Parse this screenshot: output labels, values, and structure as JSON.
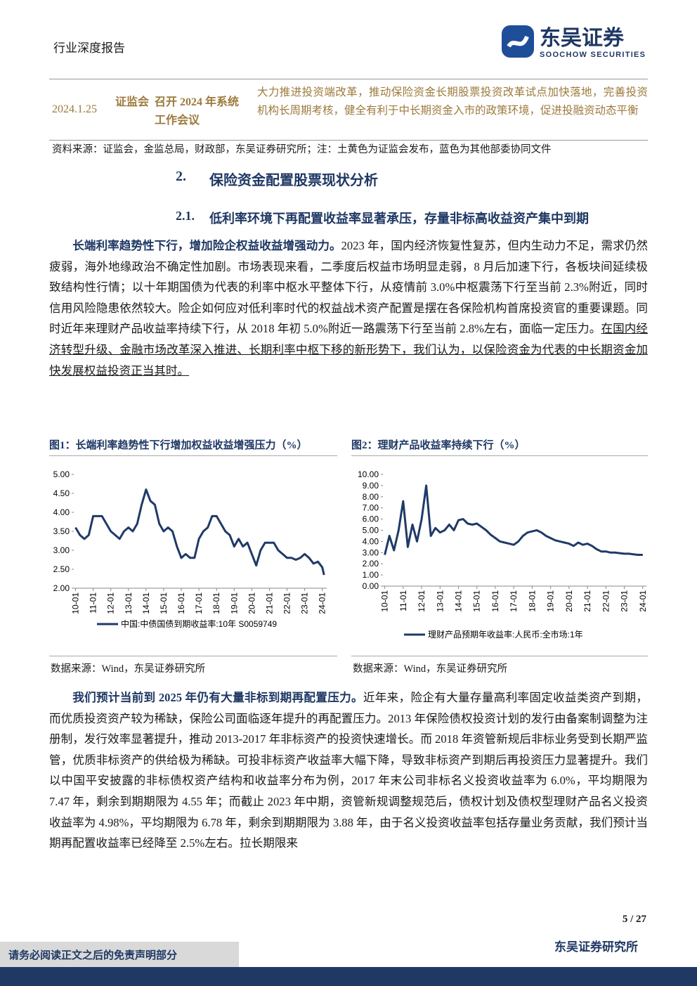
{
  "header": {
    "report_type": "行业深度报告",
    "logo_cn": "东吴证券",
    "logo_en": "SOOCHOW SECURITIES"
  },
  "table": {
    "row": [
      "2024.1.25",
      "证监会",
      "召开 2024 年系统工作会议",
      "大力推进投资端改革，推动保险资金长期股票投资改革试点加快落地，完善投资机构长周期考核，健全有利于中长期资金入市的政策环境，促进投融资动态平衡"
    ],
    "source": "资料来源：证监会，金监总局，财政部，东吴证券研究所；注：土黄色为证监会发布，蓝色为其他部委协同文件"
  },
  "section": {
    "number": "2.",
    "title": "保险资金配置股票现状分析"
  },
  "subsection": {
    "number": "2.1.",
    "title": "低利率环境下再配置收益率显著承压，存量非标高收益资产集中到期"
  },
  "paragraphs": [
    {
      "lead": "长端利率趋势性下行，增加险企权益收益增强动力。",
      "text": "2023 年，国内经济恢复性复苏，但内生动力不足，需求仍然疲弱，海外地缘政治不确定性加剧。市场表现来看，二季度后权益市场明显走弱，8 月后加速下行，各板块间延续极致结构性行情；以十年期国债为代表的利率中枢水平整体下行，从疫情前 3.0%中枢震荡下行至当前 2.3%附近，同时信用风险隐患依然较大。险企如何应对低利率时代的权益战术资产配置是摆在各保险机构首席投资官的重要课题。同时近年来理财产品收益率持续下行，从 2018 年初 5.0%附近一路震荡下行至当前 2.8%左右，面临一定压力。",
      "underlined": "在国内经济转型升级、金融市场改革深入推进、长期利率中枢下移的新形势下，我们认为，以保险资金为代表的中长期资金加快发展权益投资正当其时。"
    },
    {
      "lead": "我们预计当前到 2025 年仍有大量非标到期再配置压力。",
      "text": "近年来，险企有大量存量高利率固定收益类资产到期，而优质投资资产较为稀缺，保险公司面临逐年提升的再配置压力。2013 年保险债权投资计划的发行由备案制调整为注册制，发行效率显著提升，推动 2013-2017 年非标资产的投资快速增长。而 2018 年资管新规后非标业务受到长期严监管，优质非标资产的供给极为稀缺。可投非标资产收益率大幅下降，导致非标资产到期后再投资压力显著提升。我们以中国平安披露的非标债权资产结构和收益率分布为例，2017 年末公司非标名义投资收益率为 6.0%，平均期限为 7.47 年，剩余到期期限为 4.55 年；而截止 2023 年中期，资管新规调整规范后，债权计划及债权型理财产品名义投资收益率为 4.98%，平均期限为 6.78 年，剩余到期期限为 3.88 年，由于名义投资收益率包括存量业务贡献，我们预计当期再配置收益率已经降至 2.5%左右。拉长期限来"
    }
  ],
  "chart_data": [
    {
      "type": "line",
      "title": "图1：长端利率趋势性下行增加权益收益增强压力（%）",
      "source": "数据来源：Wind，东吴证券研究所",
      "x": [
        2010,
        2010.25,
        2010.5,
        2010.75,
        2011,
        2011.25,
        2011.5,
        2011.75,
        2012,
        2012.25,
        2012.5,
        2012.75,
        2013,
        2013.25,
        2013.5,
        2013.75,
        2014,
        2014.25,
        2014.5,
        2014.75,
        2015,
        2015.25,
        2015.5,
        2015.75,
        2016,
        2016.25,
        2016.5,
        2016.75,
        2017,
        2017.25,
        2017.5,
        2017.75,
        2018,
        2018.25,
        2018.5,
        2018.75,
        2019,
        2019.25,
        2019.5,
        2019.75,
        2020,
        2020.25,
        2020.5,
        2020.75,
        2021,
        2021.25,
        2021.5,
        2021.75,
        2022,
        2022.25,
        2022.5,
        2022.75,
        2023,
        2023.25,
        2023.5,
        2023.75,
        2024,
        2024.1
      ],
      "series": [
        {
          "name": "中国:中债国债到期收益率:10年 S0059749",
          "color": "#1f3a68",
          "values": [
            3.6,
            3.4,
            3.3,
            3.4,
            3.9,
            3.9,
            3.9,
            3.7,
            3.5,
            3.4,
            3.3,
            3.5,
            3.6,
            3.5,
            3.7,
            4.2,
            4.6,
            4.3,
            4.2,
            3.7,
            3.5,
            3.6,
            3.5,
            3.1,
            2.8,
            2.9,
            2.8,
            2.8,
            3.3,
            3.5,
            3.6,
            3.9,
            3.9,
            3.7,
            3.5,
            3.4,
            3.1,
            3.3,
            3.1,
            3.2,
            2.9,
            2.6,
            3.0,
            3.2,
            3.2,
            3.2,
            3.0,
            2.9,
            2.8,
            2.8,
            2.75,
            2.8,
            2.9,
            2.8,
            2.65,
            2.7,
            2.55,
            2.35
          ]
        }
      ],
      "xlim": [
        2009.9,
        2024.25
      ],
      "xticks": [
        {
          "value": 2010,
          "label": "10-01"
        },
        {
          "value": 2011,
          "label": "11-01"
        },
        {
          "value": 2012,
          "label": "12-01"
        },
        {
          "value": 2013,
          "label": "13-01"
        },
        {
          "value": 2014,
          "label": "14-01"
        },
        {
          "value": 2015,
          "label": "15-01"
        },
        {
          "value": 2016,
          "label": "16-01"
        },
        {
          "value": 2017,
          "label": "17-01"
        },
        {
          "value": 2018,
          "label": "18-01"
        },
        {
          "value": 2019,
          "label": "19-01"
        },
        {
          "value": 2020,
          "label": "20-01"
        },
        {
          "value": 2021,
          "label": "21-01"
        },
        {
          "value": 2022,
          "label": "22-01"
        },
        {
          "value": 2023,
          "label": "23-01"
        },
        {
          "value": 2024,
          "label": "24-01"
        }
      ],
      "ylim": [
        2.0,
        5.0
      ],
      "yticks": [
        {
          "value": 2,
          "label": "2.00"
        },
        {
          "value": 2.5,
          "label": "2.50"
        },
        {
          "value": 3,
          "label": "3.00"
        },
        {
          "value": 3.5,
          "label": "3.50"
        },
        {
          "value": 4,
          "label": "4.00"
        },
        {
          "value": 4.5,
          "label": "4.50"
        },
        {
          "value": 5,
          "label": "5.00"
        }
      ]
    },
    {
      "type": "line",
      "title": "图2：理财产品收益率持续下行（%）",
      "source": "数据来源：Wind，东吴证券研究所",
      "x": [
        2010,
        2010.25,
        2010.5,
        2010.75,
        2011,
        2011.25,
        2011.5,
        2011.75,
        2012,
        2012.25,
        2012.5,
        2012.75,
        2013,
        2013.25,
        2013.5,
        2013.75,
        2014,
        2014.25,
        2014.5,
        2014.75,
        2015,
        2015.25,
        2015.5,
        2015.75,
        2016,
        2016.25,
        2016.5,
        2016.75,
        2017,
        2017.25,
        2017.5,
        2017.75,
        2018,
        2018.25,
        2018.5,
        2018.75,
        2019,
        2019.25,
        2019.5,
        2019.75,
        2020,
        2020.25,
        2020.5,
        2020.75,
        2021,
        2021.25,
        2021.5,
        2021.75,
        2022,
        2022.25,
        2022.5,
        2022.75,
        2023,
        2023.25,
        2023.5,
        2023.75,
        2024
      ],
      "series": [
        {
          "name": "理财产品预期年收益率:人民币:全市场:1年",
          "color": "#1f3a68",
          "values": [
            2.8,
            4.5,
            3.2,
            5.0,
            7.6,
            3.5,
            5.5,
            4.0,
            6.0,
            9.0,
            4.5,
            5.2,
            4.8,
            5.0,
            5.5,
            5.0,
            5.9,
            6.0,
            5.6,
            5.5,
            5.6,
            5.3,
            5.0,
            4.6,
            4.3,
            4.0,
            3.9,
            3.8,
            3.7,
            4.0,
            4.5,
            4.8,
            4.9,
            5.0,
            4.8,
            4.5,
            4.3,
            4.1,
            4.0,
            3.9,
            3.8,
            3.6,
            3.9,
            3.7,
            3.8,
            3.6,
            3.3,
            3.1,
            3.1,
            3.0,
            3.0,
            2.95,
            2.9,
            2.9,
            2.85,
            2.8,
            2.8
          ]
        }
      ],
      "xlim": [
        2009.9,
        2024.2
      ],
      "xticks": [
        {
          "value": 2010,
          "label": "10-01"
        },
        {
          "value": 2011,
          "label": "11-01"
        },
        {
          "value": 2012,
          "label": "12-01"
        },
        {
          "value": 2013,
          "label": "13-01"
        },
        {
          "value": 2014,
          "label": "14-01"
        },
        {
          "value": 2015,
          "label": "15-01"
        },
        {
          "value": 2016,
          "label": "16-01"
        },
        {
          "value": 2017,
          "label": "17-01"
        },
        {
          "value": 2018,
          "label": "18-01"
        },
        {
          "value": 2019,
          "label": "19-01"
        },
        {
          "value": 2020,
          "label": "20-01"
        },
        {
          "value": 2021,
          "label": "21-01"
        },
        {
          "value": 2022,
          "label": "22-01"
        },
        {
          "value": 2023,
          "label": "23-01"
        },
        {
          "value": 2024,
          "label": "24-01"
        }
      ],
      "ylim": [
        0,
        10
      ],
      "yticks": [
        {
          "value": 0,
          "label": "0.00"
        },
        {
          "value": 1,
          "label": "1.00"
        },
        {
          "value": 2,
          "label": "2.00"
        },
        {
          "value": 3,
          "label": "3.00"
        },
        {
          "value": 4,
          "label": "4.00"
        },
        {
          "value": 5,
          "label": "5.00"
        },
        {
          "value": 6,
          "label": "6.00"
        },
        {
          "value": 7,
          "label": "7.00"
        },
        {
          "value": 8,
          "label": "8.00"
        },
        {
          "value": 9,
          "label": "9.00"
        },
        {
          "value": 10,
          "label": "10.00"
        }
      ]
    }
  ],
  "footer": {
    "page": "5 / 27",
    "institute": "东吴证券研究所",
    "disclaimer": "请务必阅读正文之后的免责声明部分"
  }
}
